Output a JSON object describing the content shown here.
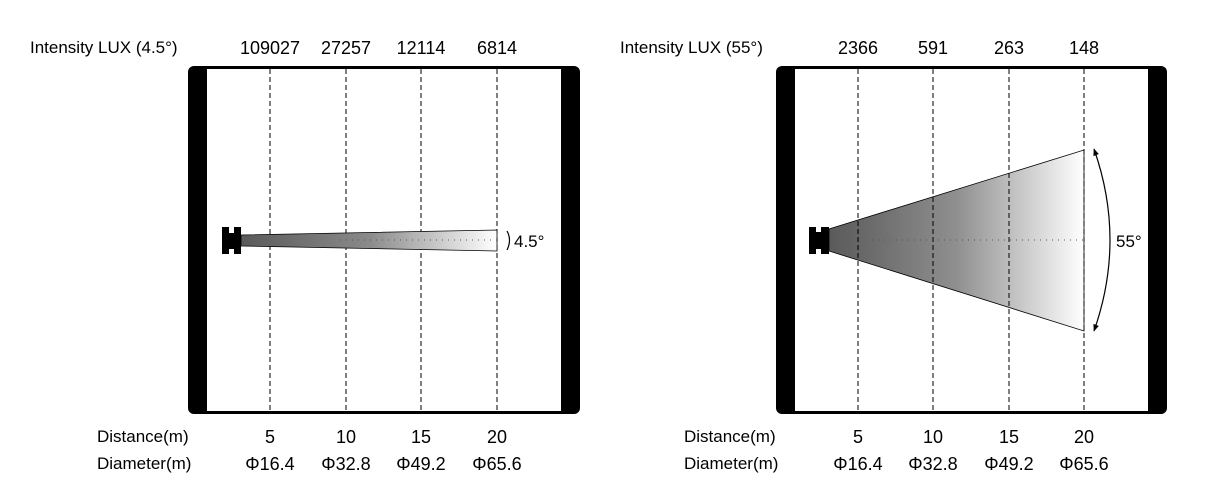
{
  "panels": [
    {
      "intensity_label": "Intensity LUX (4.5°)",
      "intensity_values": [
        "109027",
        "27257",
        "12114",
        "6814"
      ],
      "beam_angle_label": "4.5°",
      "distance_label": "Distance(m)",
      "distances": [
        "5",
        "10",
        "15",
        "20"
      ],
      "diameter_label": "Diameter(m)",
      "diameters": [
        "Φ16.4",
        "Φ32.8",
        "Φ49.2",
        "Φ65.6"
      ]
    },
    {
      "intensity_label": "Intensity LUX (55°)",
      "intensity_values": [
        "2366",
        "591",
        "263",
        "148"
      ],
      "beam_angle_label": "55°",
      "distance_label": "Distance(m)",
      "distances": [
        "5",
        "10",
        "15",
        "20"
      ],
      "diameter_label": "Diameter(m)",
      "diameters": [
        "Φ16.4",
        "Φ32.8",
        "Φ49.2",
        "Φ65.6"
      ]
    }
  ],
  "colors": {
    "frame": "#000000",
    "beam_dark": "#5a5a5a",
    "beam_light": "#ffffff"
  }
}
